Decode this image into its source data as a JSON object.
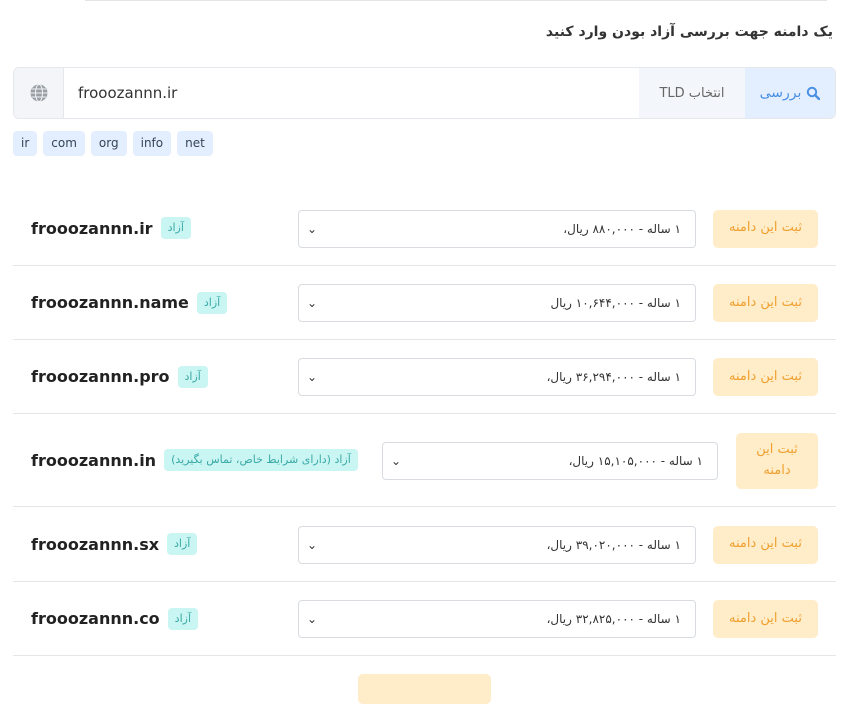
{
  "title": "یک دامنه جهت بررسی آزاد بودن وارد کنید",
  "search": {
    "check_label": "بررسی",
    "tld_label": "انتخاب TLD",
    "value": "frooozannn.ir",
    "icon": "search-icon",
    "globe_icon": "globe-icon"
  },
  "tlds": [
    "ir",
    "com",
    "org",
    "info",
    "net"
  ],
  "colors": {
    "accent": "#4a90e2",
    "badge": "#c9f5f3",
    "register": "#ffecc8"
  },
  "results": [
    {
      "domain": "frooozannn.ir",
      "status": "آزاد",
      "price": "۱ ساله - ۸۸۰,۰۰۰ ریال،",
      "register": "ثبت این دامنه"
    },
    {
      "domain": "frooozannn.name",
      "status": "آزاد",
      "price": "۱ ساله - ۱۰,۶۴۴,۰۰۰ ریال",
      "register": "ثبت این دامنه"
    },
    {
      "domain": "frooozannn.pro",
      "status": "آزاد",
      "price": "۱ ساله - ۳۶,۲۹۴,۰۰۰ ریال،",
      "register": "ثبت این دامنه"
    },
    {
      "domain": "frooozannn.in",
      "status": "آزاد (دارای شرایط خاص، تماس بگیرید)",
      "price": "۱ ساله - ۱۵,۱۰۵,۰۰۰ ریال،",
      "register": "ثبت این دامنه"
    },
    {
      "domain": "frooozannn.sx",
      "status": "آزاد",
      "price": "۱ ساله - ۳۹,۰۲۰,۰۰۰ ریال،",
      "register": "ثبت این دامنه"
    },
    {
      "domain": "frooozannn.co",
      "status": "آزاد",
      "price": "۱ ساله - ۳۲,۸۲۵,۰۰۰ ریال،",
      "register": "ثبت این دامنه"
    }
  ]
}
